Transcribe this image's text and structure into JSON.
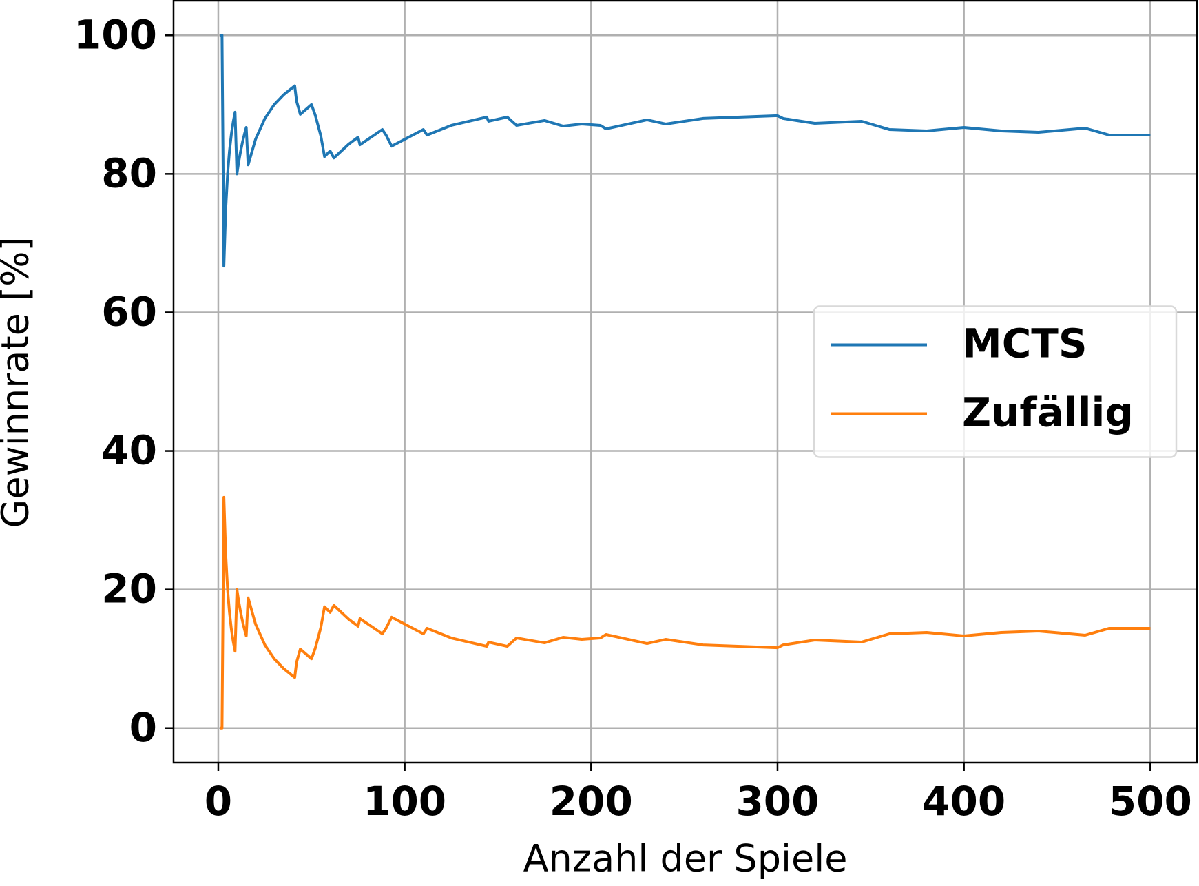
{
  "chart_data": {
    "type": "line",
    "xlabel": "Anzahl der Spiele",
    "ylabel": "Gewinnrate [%]",
    "x": [
      1,
      2,
      3,
      4,
      5,
      6,
      7,
      8,
      9,
      10,
      11,
      12,
      13,
      14,
      15,
      16,
      20,
      25,
      30,
      35,
      41,
      42,
      44,
      50,
      52,
      55,
      57,
      60,
      62,
      70,
      75,
      76,
      88,
      90,
      93,
      110,
      112,
      125,
      144,
      145,
      155,
      160,
      175,
      185,
      195,
      205,
      208,
      230,
      240,
      260,
      280,
      300,
      303,
      320,
      345,
      360,
      370,
      380,
      400,
      420,
      440,
      465,
      478,
      490,
      500
    ],
    "series": [
      {
        "name": "MCTS",
        "color": "#1f77b4",
        "values": [
          100,
          100,
          66.7,
          75,
          80,
          83.3,
          85.7,
          87.5,
          88.9,
          80,
          81.8,
          83.3,
          84.6,
          85.7,
          86.7,
          81.3,
          85,
          88,
          90,
          91.4,
          92.7,
          90.5,
          88.6,
          90,
          88.5,
          85.5,
          82.5,
          83.3,
          82.3,
          84.3,
          85.3,
          84.2,
          86.4,
          85.6,
          84,
          86.4,
          85.6,
          87,
          88.2,
          87.6,
          88.2,
          87,
          87.7,
          86.9,
          87.2,
          87,
          86.5,
          87.8,
          87.2,
          88,
          88.2,
          88.4,
          88,
          87.3,
          87.6,
          86.4,
          86.3,
          86.2,
          86.7,
          86.2,
          86,
          86.6,
          85.6,
          85.6,
          85.6
        ]
      },
      {
        "name": "Zufällig",
        "color": "#ff7f0e",
        "values": [
          0,
          0,
          33.3,
          25,
          20,
          16.7,
          14.3,
          12.5,
          11.1,
          20,
          18.2,
          16.7,
          15.4,
          14.3,
          13.3,
          18.8,
          15,
          12,
          10,
          8.6,
          7.3,
          9.5,
          11.4,
          10,
          11.5,
          14.5,
          17.5,
          16.7,
          17.7,
          15.7,
          14.7,
          15.8,
          13.6,
          14.4,
          16,
          13.6,
          14.4,
          13,
          11.8,
          12.4,
          11.8,
          13,
          12.3,
          13.1,
          12.8,
          13,
          13.5,
          12.2,
          12.8,
          12,
          11.8,
          11.6,
          12,
          12.7,
          12.4,
          13.6,
          13.7,
          13.8,
          13.3,
          13.8,
          14,
          13.4,
          14.4,
          14.4,
          14.4
        ]
      }
    ],
    "xlim": [
      -24,
      525
    ],
    "ylim": [
      -5,
      105
    ],
    "xticks": [
      0,
      100,
      200,
      300,
      400,
      500
    ],
    "yticks": [
      0,
      20,
      40,
      60,
      80,
      100
    ],
    "grid": true,
    "legend": "center right"
  }
}
